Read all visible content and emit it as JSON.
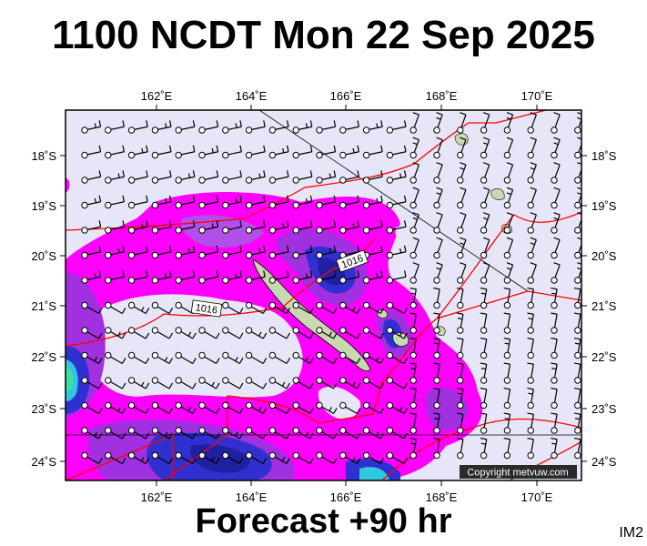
{
  "title": "1100 NCDT Mon 22 Sep 2025",
  "footer": "Forecast +90 hr",
  "code": "IM2",
  "copyright": "Copyright metvuw.com",
  "isobar_labels": [
    "1016",
    "1016"
  ],
  "lon_ticks": [
    "162˚E",
    "164˚E",
    "166˚E",
    "168˚E",
    "170˚E"
  ],
  "lat_ticks": [
    "18˚S",
    "19˚S",
    "20˚S",
    "21˚S",
    "22˚S",
    "23˚S",
    "24˚S"
  ],
  "colors": {
    "ocean": "#e6e6f8",
    "rain_light": "#ff00ff",
    "rain_mid": "#a030e0",
    "rain_heavy": "#3030d0",
    "rain_extreme": "#30c8e0",
    "isobar": "#ff0000",
    "land": "#c8d8b0"
  }
}
